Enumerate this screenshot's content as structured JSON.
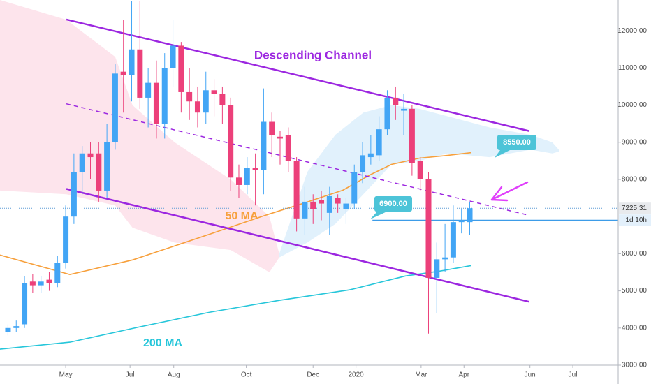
{
  "chart_data": {
    "type": "candlestick",
    "x": [
      -7,
      -6,
      -5,
      -4,
      -3,
      -2,
      -1,
      0,
      1,
      2,
      3,
      4,
      5,
      6,
      7,
      8,
      9,
      10,
      11,
      12,
      13,
      14,
      15,
      16,
      17,
      18,
      19,
      20,
      21,
      22,
      23,
      24,
      25,
      26,
      27,
      28,
      29,
      30,
      31,
      32,
      33,
      34,
      35,
      36,
      37,
      38,
      39,
      40,
      41,
      42,
      43,
      44,
      45,
      46,
      47,
      48,
      49
    ],
    "open": [
      3900,
      4000,
      4100,
      5250,
      5150,
      5300,
      5200,
      5750,
      7000,
      8200,
      8700,
      8700,
      7700,
      9000,
      10900,
      10800,
      11500,
      10200,
      10600,
      9500,
      11000,
      11600,
      10350,
      10100,
      9800,
      10400,
      10300,
      10000,
      8050,
      7850,
      8300,
      8250,
      9550,
      9150,
      9200,
      8500,
      6950,
      7400,
      7450,
      7100,
      7500,
      7200,
      7350,
      8200,
      8600,
      8650,
      9350,
      10200,
      9850,
      9900,
      8500,
      8000,
      5350,
      5850,
      5900,
      6850,
      6850
    ],
    "high": [
      4100,
      4200,
      5400,
      5450,
      5400,
      5500,
      5950,
      7300,
      8700,
      8900,
      9000,
      9000,
      9500,
      11100,
      12300,
      12800,
      12800,
      11000,
      11200,
      11400,
      12300,
      11700,
      11000,
      10500,
      10900,
      10700,
      10500,
      10200,
      8400,
      8600,
      8700,
      10450,
      9800,
      9300,
      9400,
      8600,
      7800,
      7600,
      7700,
      7800,
      7600,
      7500,
      8400,
      9000,
      9200,
      9700,
      10400,
      10500,
      10300,
      10000,
      8600,
      8200,
      6300,
      6800,
      7300,
      7200,
      7400
    ],
    "low": [
      3800,
      3900,
      4000,
      4950,
      4950,
      5000,
      5100,
      5600,
      6800,
      7600,
      8000,
      7400,
      7500,
      8800,
      9800,
      10100,
      9900,
      9400,
      9100,
      9100,
      10500,
      9800,
      9600,
      9400,
      9500,
      9700,
      9500,
      7700,
      7500,
      7600,
      7300,
      7600,
      8600,
      8400,
      8200,
      6600,
      6500,
      6800,
      6900,
      6500,
      7100,
      6800,
      7200,
      7900,
      8400,
      8500,
      9200,
      9600,
      9200,
      8100,
      7700,
      3850,
      4400,
      5500,
      5750,
      6550,
      6500
    ],
    "close": [
      4000,
      4050,
      5200,
      5150,
      5250,
      5200,
      5750,
      7000,
      8200,
      8700,
      8600,
      7700,
      9000,
      10850,
      10800,
      11500,
      10200,
      10600,
      9500,
      11000,
      11600,
      10350,
      10100,
      9800,
      10400,
      10300,
      10000,
      8050,
      7850,
      8300,
      8250,
      9550,
      9200,
      9100,
      8500,
      6950,
      7400,
      7200,
      7350,
      7550,
      7350,
      7350,
      8200,
      8650,
      8700,
      9350,
      10200,
      10000,
      9900,
      8450,
      8000,
      5350,
      5850,
      5900,
      6850,
      6900,
      7225
    ],
    "up_color": "#42a5f5",
    "down_color": "#ec407a",
    "xlim": [
      -7.97,
      67
    ],
    "ylim": [
      3000,
      12830
    ],
    "xticks": [
      {
        "value": 0,
        "label": "May"
      },
      {
        "value": 7.8,
        "label": "Jul"
      },
      {
        "value": 13.1,
        "label": "Aug"
      },
      {
        "value": 21.9,
        "label": "Oct"
      },
      {
        "value": 30.0,
        "label": "Dec"
      },
      {
        "value": 35.2,
        "label": "2020"
      },
      {
        "value": 43.1,
        "label": "Mar"
      },
      {
        "value": 48.3,
        "label": "Apr"
      },
      {
        "value": 56.3,
        "label": "Jun"
      },
      {
        "value": 61.5,
        "label": "Jul"
      }
    ],
    "yticks": [
      {
        "value": 3000,
        "label": "3000.00"
      },
      {
        "value": 4000,
        "label": "4000.00"
      },
      {
        "value": 5000,
        "label": "5000.00"
      },
      {
        "value": 6000,
        "label": "6000.00"
      },
      {
        "value": 8000,
        "label": "8000.00"
      },
      {
        "value": 9000,
        "label": "9000.00"
      },
      {
        "value": 10000,
        "label": "10000.00"
      },
      {
        "value": 11000,
        "label": "11000.00"
      },
      {
        "value": 12000,
        "label": "12000.00"
      }
    ],
    "grid": false,
    "cloud": [
      {
        "color": "#fde4ec",
        "x": [
          -7.97,
          0.08,
          6.0,
          8.1,
          13.2,
          20.0,
          24.7,
          25.9
        ],
        "upper": [
          12830,
          12300,
          11300,
          10000,
          9000,
          8000,
          7000,
          6000
        ],
        "lower": [
          7700,
          7600,
          7300,
          6700,
          6300,
          6100,
          5500,
          5900
        ]
      },
      {
        "color": "#e1f1fc",
        "x": [
          25.9,
          29.3,
          32.7,
          36.1,
          39.5,
          42.9,
          46.3,
          51.4,
          56.4,
          59.0,
          59.8
        ],
        "upper": [
          6000,
          8200,
          9200,
          9800,
          10000,
          9900,
          9700,
          9400,
          9200,
          9000,
          8800
        ],
        "lower": [
          5900,
          6300,
          6800,
          7600,
          8400,
          8500,
          8700,
          8600,
          8800,
          8700,
          8750
        ]
      }
    ],
    "moving_averages": [
      {
        "name": "50 MA",
        "color": "#f7a03c",
        "x": [
          -7.97,
          0.5,
          8.1,
          17.5,
          24.2,
          28.5,
          33.6,
          36.9,
          39.5,
          42.9,
          46.3,
          49.2
        ],
        "values": [
          5964,
          5439,
          5833,
          6527,
          7033,
          7334,
          7709,
          8121,
          8403,
          8572,
          8647,
          8722
        ]
      },
      {
        "name": "200 MA",
        "color": "#26c6da",
        "x": [
          -7.97,
          0.5,
          9.0,
          17.5,
          25.9,
          34.4,
          41.2,
          45.4,
          49.2
        ],
        "values": [
          3431,
          3619,
          4032,
          4426,
          4745,
          5026,
          5401,
          5533,
          5683
        ]
      }
    ],
    "channel": {
      "label": "Descending Channel",
      "color": "#9c27e0",
      "upper": {
        "x": [
          0.08,
          56.19
        ],
        "values": [
          12305,
          9303
        ]
      },
      "lower": {
        "x": [
          0.08,
          56.19
        ],
        "values": [
          7746,
          4707
        ]
      },
      "middle": {
        "x": [
          0.08,
          56.19
        ],
        "values": [
          10035,
          7033
        ]
      }
    },
    "price_line": {
      "value": 6900,
      "label": "6900.00",
      "x_start": 37.2,
      "color": "#3d9ce8"
    },
    "callout_label": "8550.00",
    "last_price": {
      "value": 7225.31,
      "label": "7225.31",
      "countdown": "1d 10h"
    }
  }
}
